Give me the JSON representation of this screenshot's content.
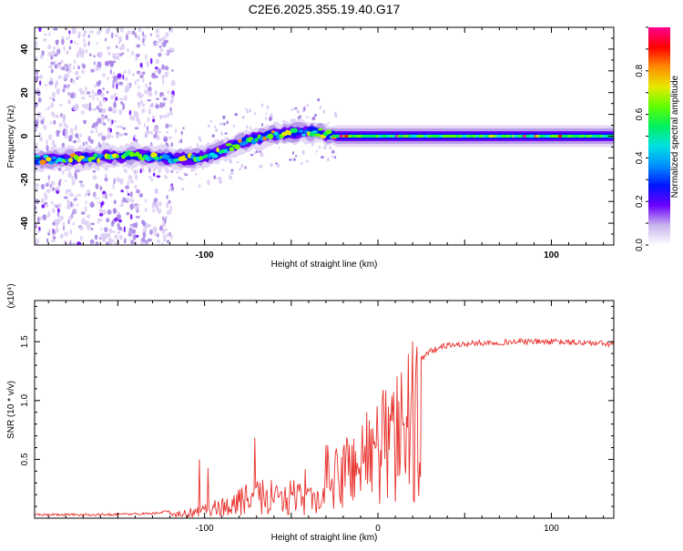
{
  "title": "C2E6.2025.355.19.40.G17",
  "chart_data": [
    {
      "type": "heatmap",
      "name": "spectrogram",
      "xlabel": "Height of straight line (km)",
      "ylabel": "Frequency (Hz)",
      "xlim": [
        -198,
        136
      ],
      "ylim": [
        -50,
        50
      ],
      "xticks": [
        -100,
        0,
        100
      ],
      "xtick_labels": [
        "-100",
        "",
        "100"
      ],
      "yticks": [
        -40,
        -20,
        0,
        20,
        40
      ],
      "ytick_labels": [
        "-40",
        "-20",
        "0",
        "20",
        "40"
      ],
      "ridge": {
        "x": [
          -198,
          -170,
          -140,
          -120,
          -105,
          -95,
          -85,
          -75,
          -65,
          -55,
          -45,
          -35,
          -25,
          -10,
          0,
          20,
          60,
          100,
          136
        ],
        "y": [
          -11,
          -10,
          -9,
          -10,
          -10,
          -8,
          -5,
          -2,
          0,
          1,
          2,
          2,
          0,
          0,
          0,
          0,
          0,
          0,
          0
        ]
      },
      "colorbar": {
        "label": "Normalized spectral amplitude",
        "range": [
          0,
          1
        ],
        "ticks": [
          0.0,
          0.2,
          0.4,
          0.6,
          0.8
        ],
        "tick_labels": [
          "0.0",
          "0.2",
          "0.4",
          "0.6",
          "0.8"
        ],
        "colors": [
          "#ffffff",
          "#c9b3ee",
          "#6a00ff",
          "#0014ff",
          "#0090ff",
          "#00e1e1",
          "#00f060",
          "#5fff00",
          "#e8e800",
          "#ff8c00",
          "#ff0000",
          "#ff0090"
        ]
      }
    },
    {
      "type": "line",
      "name": "snr",
      "xlabel": "Height of straight line (km)",
      "ylabel": "SNR (10 * v/v)",
      "y_scale_label": "(x10⁴)",
      "color": "#e8302b",
      "xlim": [
        -198,
        136
      ],
      "ylim": [
        0,
        1.85
      ],
      "xticks": [
        -100,
        0,
        100
      ],
      "xtick_labels": [
        "-100",
        "0",
        "100"
      ],
      "yticks": [
        0.5,
        1.0,
        1.5
      ],
      "ytick_labels": [
        "0.5",
        "1.0",
        "1.5"
      ],
      "envelope": {
        "x": [
          -198,
          -160,
          -130,
          -115,
          -100,
          -90,
          -80,
          -70,
          -60,
          -50,
          -40,
          -32,
          -28,
          -22,
          -15,
          -8,
          0,
          5,
          10,
          12,
          15,
          20,
          30,
          40,
          60,
          80,
          100,
          120,
          136
        ],
        "y": [
          0.02,
          0.02,
          0.03,
          0.06,
          0.1,
          0.15,
          0.22,
          0.28,
          0.3,
          0.28,
          0.22,
          0.25,
          0.45,
          0.55,
          0.7,
          0.8,
          0.9,
          1.05,
          1.2,
          0.85,
          1.1,
          1.3,
          1.42,
          1.47,
          1.49,
          1.5,
          1.5,
          1.49,
          1.48
        ]
      }
    }
  ]
}
